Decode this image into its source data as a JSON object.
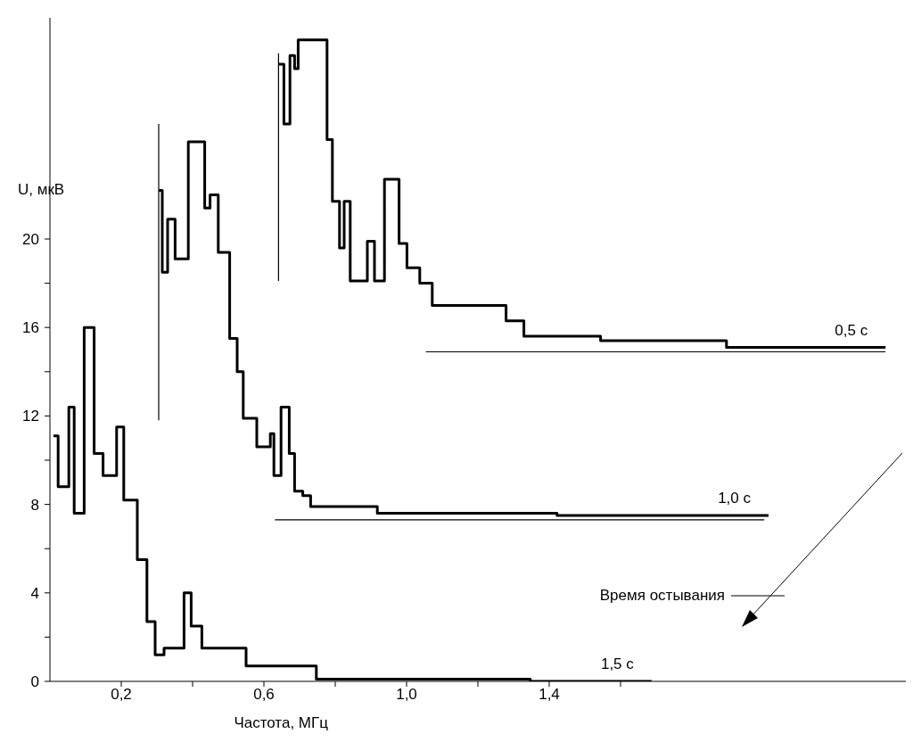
{
  "chart_data": {
    "type": "step",
    "xlabel": "Частота, МГц",
    "ylabel": "U, мкВ",
    "xlim": [
      0,
      2.4
    ],
    "ylim": [
      0,
      30
    ],
    "xticks": [
      {
        "value": 0.2,
        "label": "0,2"
      },
      {
        "value": 0.4,
        "label": null
      },
      {
        "value": 0.6,
        "label": "0,6"
      },
      {
        "value": 0.8,
        "label": null
      },
      {
        "value": 1.0,
        "label": "1,0"
      },
      {
        "value": 1.2,
        "label": null
      },
      {
        "value": 1.4,
        "label": "1,4"
      },
      {
        "value": 1.6,
        "label": null
      }
    ],
    "yticks": [
      0,
      {
        "value": 2,
        "label": null
      },
      4,
      {
        "value": 6,
        "label": null
      },
      8,
      {
        "value": 10,
        "label": null
      },
      12,
      {
        "value": 14,
        "label": null
      },
      16,
      {
        "value": 18,
        "label": null
      },
      20
    ],
    "grid": false,
    "legend": false,
    "marker": "none",
    "line_style": "solid",
    "annotations": [
      "Время остывания"
    ],
    "series": [
      {
        "name": "1,5 с",
        "color": "#000000",
        "x": [
          0.01,
          0.023,
          0.053,
          0.068,
          0.096,
          0.124,
          0.149,
          0.187,
          0.207,
          0.245,
          0.272,
          0.295,
          0.32,
          0.376,
          0.396,
          0.426,
          0.55,
          0.747,
          1.347,
          1.687
        ],
        "values": [
          11.1,
          8.8,
          12.4,
          7.6,
          16.0,
          10.3,
          9.3,
          11.5,
          8.2,
          5.5,
          2.7,
          1.2,
          1.5,
          4.0,
          2.5,
          1.5,
          0.7,
          0.1,
          0,
          0
        ]
      },
      {
        "name": "1,0 с",
        "color": "#000000",
        "x": [
          0.305,
          0.315,
          0.33,
          0.351,
          0.388,
          0.434,
          0.449,
          0.472,
          0.504,
          0.525,
          0.542,
          0.58,
          0.618,
          0.628,
          0.648,
          0.671,
          0.686,
          0.709,
          0.731,
          0.918,
          1.422,
          2.015
        ],
        "values": [
          22.2,
          18.5,
          20.9,
          19.1,
          24.4,
          21.4,
          22.0,
          19.4,
          15.5,
          14.0,
          11.9,
          10.6,
          11.2,
          9.3,
          12.4,
          10.3,
          8.6,
          8.4,
          7.9,
          7.6,
          7.5,
          7.5
        ]
      },
      {
        "name": "0,5 с",
        "color": "#000000",
        "x": [
          0.641,
          0.656,
          0.673,
          0.686,
          0.696,
          0.777,
          0.792,
          0.812,
          0.825,
          0.842,
          0.89,
          0.91,
          0.938,
          0.979,
          1.001,
          1.037,
          1.072,
          1.279,
          1.329,
          1.544,
          1.897,
          2.343
        ],
        "values": [
          27.9,
          25.2,
          28.3,
          27.7,
          29.0,
          24.5,
          21.7,
          19.6,
          21.7,
          18.1,
          19.9,
          18.1,
          22.7,
          19.8,
          18.7,
          18.0,
          17.0,
          16.3,
          15.6,
          15.4,
          15.1,
          15.1
        ]
      },
      {
        "type": "line",
        "color": "#000000",
        "x": [
          0.631,
          2.003
        ],
        "values": [
          7.3,
          7.3
        ]
      },
      {
        "type": "line",
        "color": "#000000",
        "x": [
          1.054,
          2.343
        ],
        "values": [
          14.9,
          14.9
        ]
      },
      {
        "type": "line",
        "color": "#000000",
        "x": [
          0.305,
          0.305
        ],
        "values": [
          25.2,
          11.8
        ]
      },
      {
        "type": "line",
        "color": "#000000",
        "x": [
          0.641,
          0.641
        ],
        "values": [
          28.4,
          18.1
        ]
      }
    ]
  }
}
